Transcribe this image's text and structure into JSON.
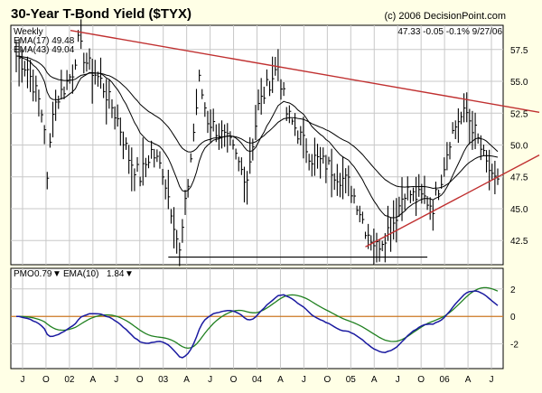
{
  "header": {
    "title": "30-Year T-Bond Yield ($TYX)",
    "copyright": "(c) 2006 DecisionPoint.com",
    "frequency": "Weekly",
    "ema17_label": "EMA(17) 49.48",
    "ema43_label": "EMA(43) 49.04",
    "last_quote": "47.33  -0.05  -0.1%  9/27/06"
  },
  "pmo_panel": {
    "pmo_label": "PMO",
    "pmo_value": "0.79",
    "ema_label": "EMA(10)",
    "ema_value": "1.84"
  },
  "colors": {
    "background": "#ffffe6",
    "plot_bg": "#ffffff",
    "grid": "#c8c8c8",
    "price_bars": "#000000",
    "ema17": "#000000",
    "ema43": "#000000",
    "resistance_line": "#c03030",
    "support_line": "#c03030",
    "base_line": "#000000",
    "pmo": "#1a1aa0",
    "pmo_ema": "#208020",
    "zero_line": "#cc7722"
  },
  "chart_data": [
    {
      "type": "line",
      "name": "price",
      "ylim": [
        40.6,
        59.4
      ],
      "yticks": [
        "42.5",
        "45.0",
        "47.5",
        "50.0",
        "52.5",
        "55.0",
        "57.5"
      ],
      "x_labels": [
        "J",
        "O",
        "02",
        "A",
        "J",
        "O",
        "03",
        "A",
        "J",
        "O",
        "04",
        "A",
        "J",
        "O",
        "05",
        "A",
        "J",
        "O",
        "06",
        "A",
        "J"
      ],
      "price_anchors": [
        [
          0,
          57.0
        ],
        [
          4,
          56.0
        ],
        [
          8,
          53.5
        ],
        [
          10,
          51.5
        ],
        [
          11,
          47.0
        ],
        [
          13,
          53.0
        ],
        [
          17,
          54.5
        ],
        [
          20,
          55.8
        ],
        [
          22,
          58.0
        ],
        [
          25,
          56.5
        ],
        [
          30,
          55.0
        ],
        [
          36,
          52.0
        ],
        [
          40,
          49.0
        ],
        [
          44,
          47.5
        ],
        [
          48,
          49.5
        ],
        [
          52,
          48.0
        ],
        [
          56,
          44.0
        ],
        [
          58,
          41.5
        ],
        [
          61,
          47.0
        ],
        [
          65,
          55.0
        ],
        [
          68,
          52.0
        ],
        [
          72,
          51.0
        ],
        [
          76,
          50.0
        ],
        [
          80,
          48.0
        ],
        [
          82,
          47.5
        ],
        [
          86,
          53.0
        ],
        [
          90,
          55.0
        ],
        [
          93,
          56.2
        ],
        [
          96,
          52.5
        ],
        [
          100,
          51.0
        ],
        [
          105,
          49.0
        ],
        [
          110,
          48.5
        ],
        [
          115,
          47.5
        ],
        [
          118,
          47.0
        ],
        [
          121,
          45.5
        ],
        [
          124,
          43.5
        ],
        [
          128,
          42.0
        ],
        [
          131,
          43.0
        ],
        [
          134,
          44.0
        ],
        [
          138,
          46.5
        ],
        [
          141,
          46.0
        ],
        [
          145,
          45.8
        ],
        [
          148,
          45.2
        ],
        [
          151,
          47.5
        ],
        [
          154,
          50.5
        ],
        [
          157,
          52.0
        ],
        [
          160,
          52.5
        ],
        [
          163,
          51.0
        ],
        [
          166,
          49.0
        ],
        [
          168,
          48.0
        ]
      ],
      "ema17_last": 49.48,
      "ema43_last": 49.04,
      "last": 47.33,
      "resistance_line": [
        [
          0,
          59.0
        ],
        [
          172,
          52.5
        ]
      ],
      "support_line": [
        [
          124,
          42.0
        ],
        [
          172,
          48.5
        ]
      ],
      "base_line": [
        [
          54,
          41.2
        ],
        [
          146,
          41.2
        ]
      ]
    },
    {
      "type": "line",
      "name": "pmo",
      "ylim": [
        -3.8,
        3.5
      ],
      "yticks": [
        "-2",
        "0",
        "2"
      ],
      "series": [
        {
          "name": "PMO",
          "last": 0.79
        },
        {
          "name": "EMA(10)",
          "last": 1.84
        }
      ],
      "zero_line": 0
    }
  ]
}
